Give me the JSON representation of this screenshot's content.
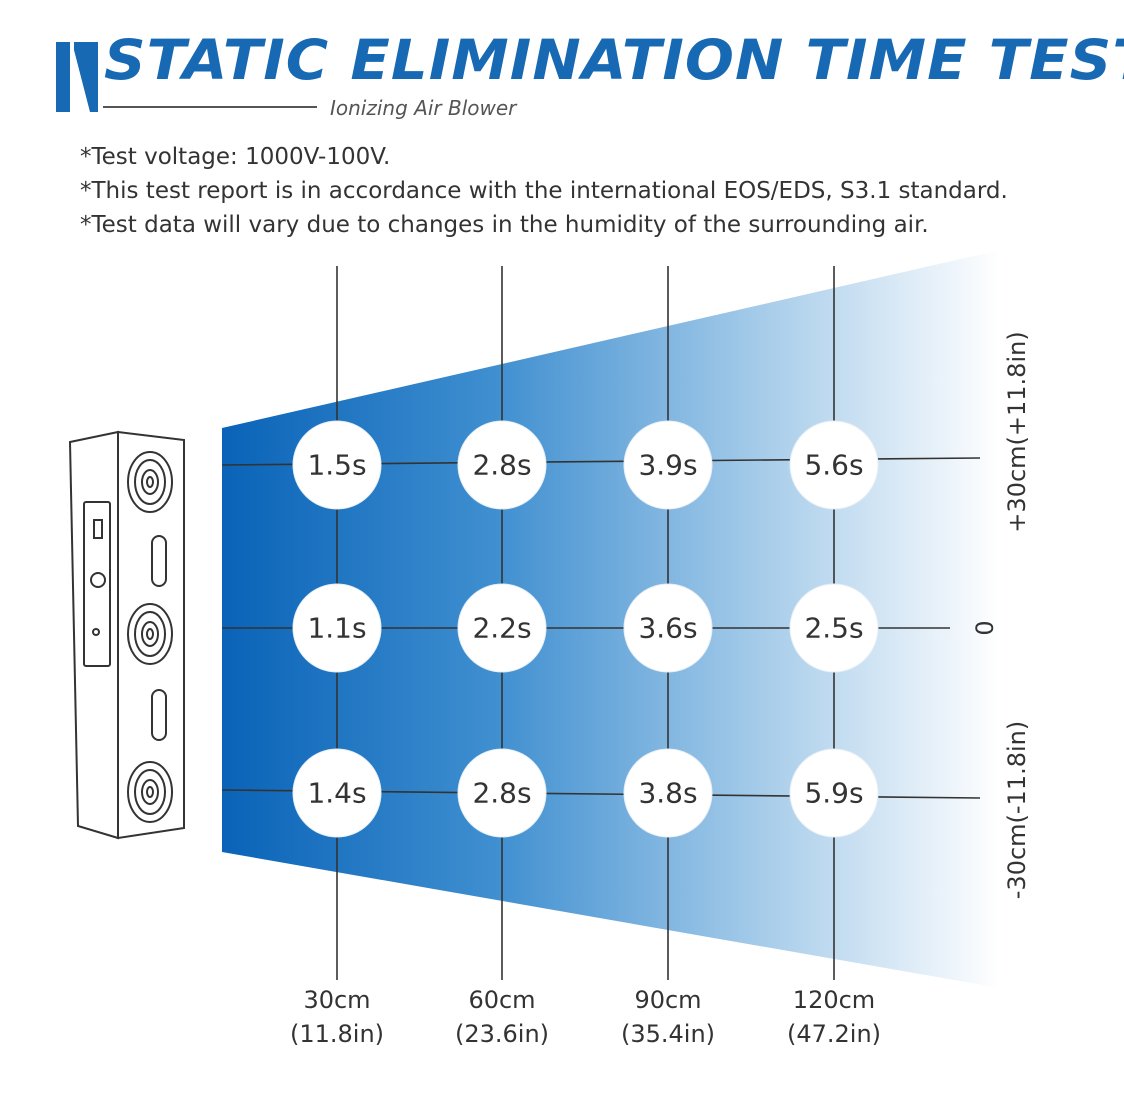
{
  "header": {
    "title": "STATIC ELIMINATION TIME TEST",
    "subtitle": "Ionizing Air Blower"
  },
  "notes": [
    "*Test voltage: 1000V-100V.",
    "*This test report is in accordance with the international EOS/EDS, S3.1 standard.",
    "*Test data will vary due to changes in the humidity of the surrounding air."
  ],
  "grid": {
    "distances": [
      {
        "cm": "30cm",
        "in": "(11.8in)"
      },
      {
        "cm": "60cm",
        "in": "(23.6in)"
      },
      {
        "cm": "90cm",
        "in": "(35.4in)"
      },
      {
        "cm": "120cm",
        "in": "(47.2in)"
      }
    ],
    "offsets": [
      "+30cm(+11.8in)",
      "0",
      "-30cm(-11.8in)"
    ],
    "rows": [
      [
        "1.5s",
        "2.8s",
        "3.9s",
        "5.6s"
      ],
      [
        "1.1s",
        "2.2s",
        "3.6s",
        "2.5s"
      ],
      [
        "1.4s",
        "2.8s",
        "3.8s",
        "5.9s"
      ]
    ]
  },
  "colors": {
    "title_blue": "#1769b3",
    "gradient_start": "#0a63b8",
    "gradient_end": "#ffffff"
  }
}
